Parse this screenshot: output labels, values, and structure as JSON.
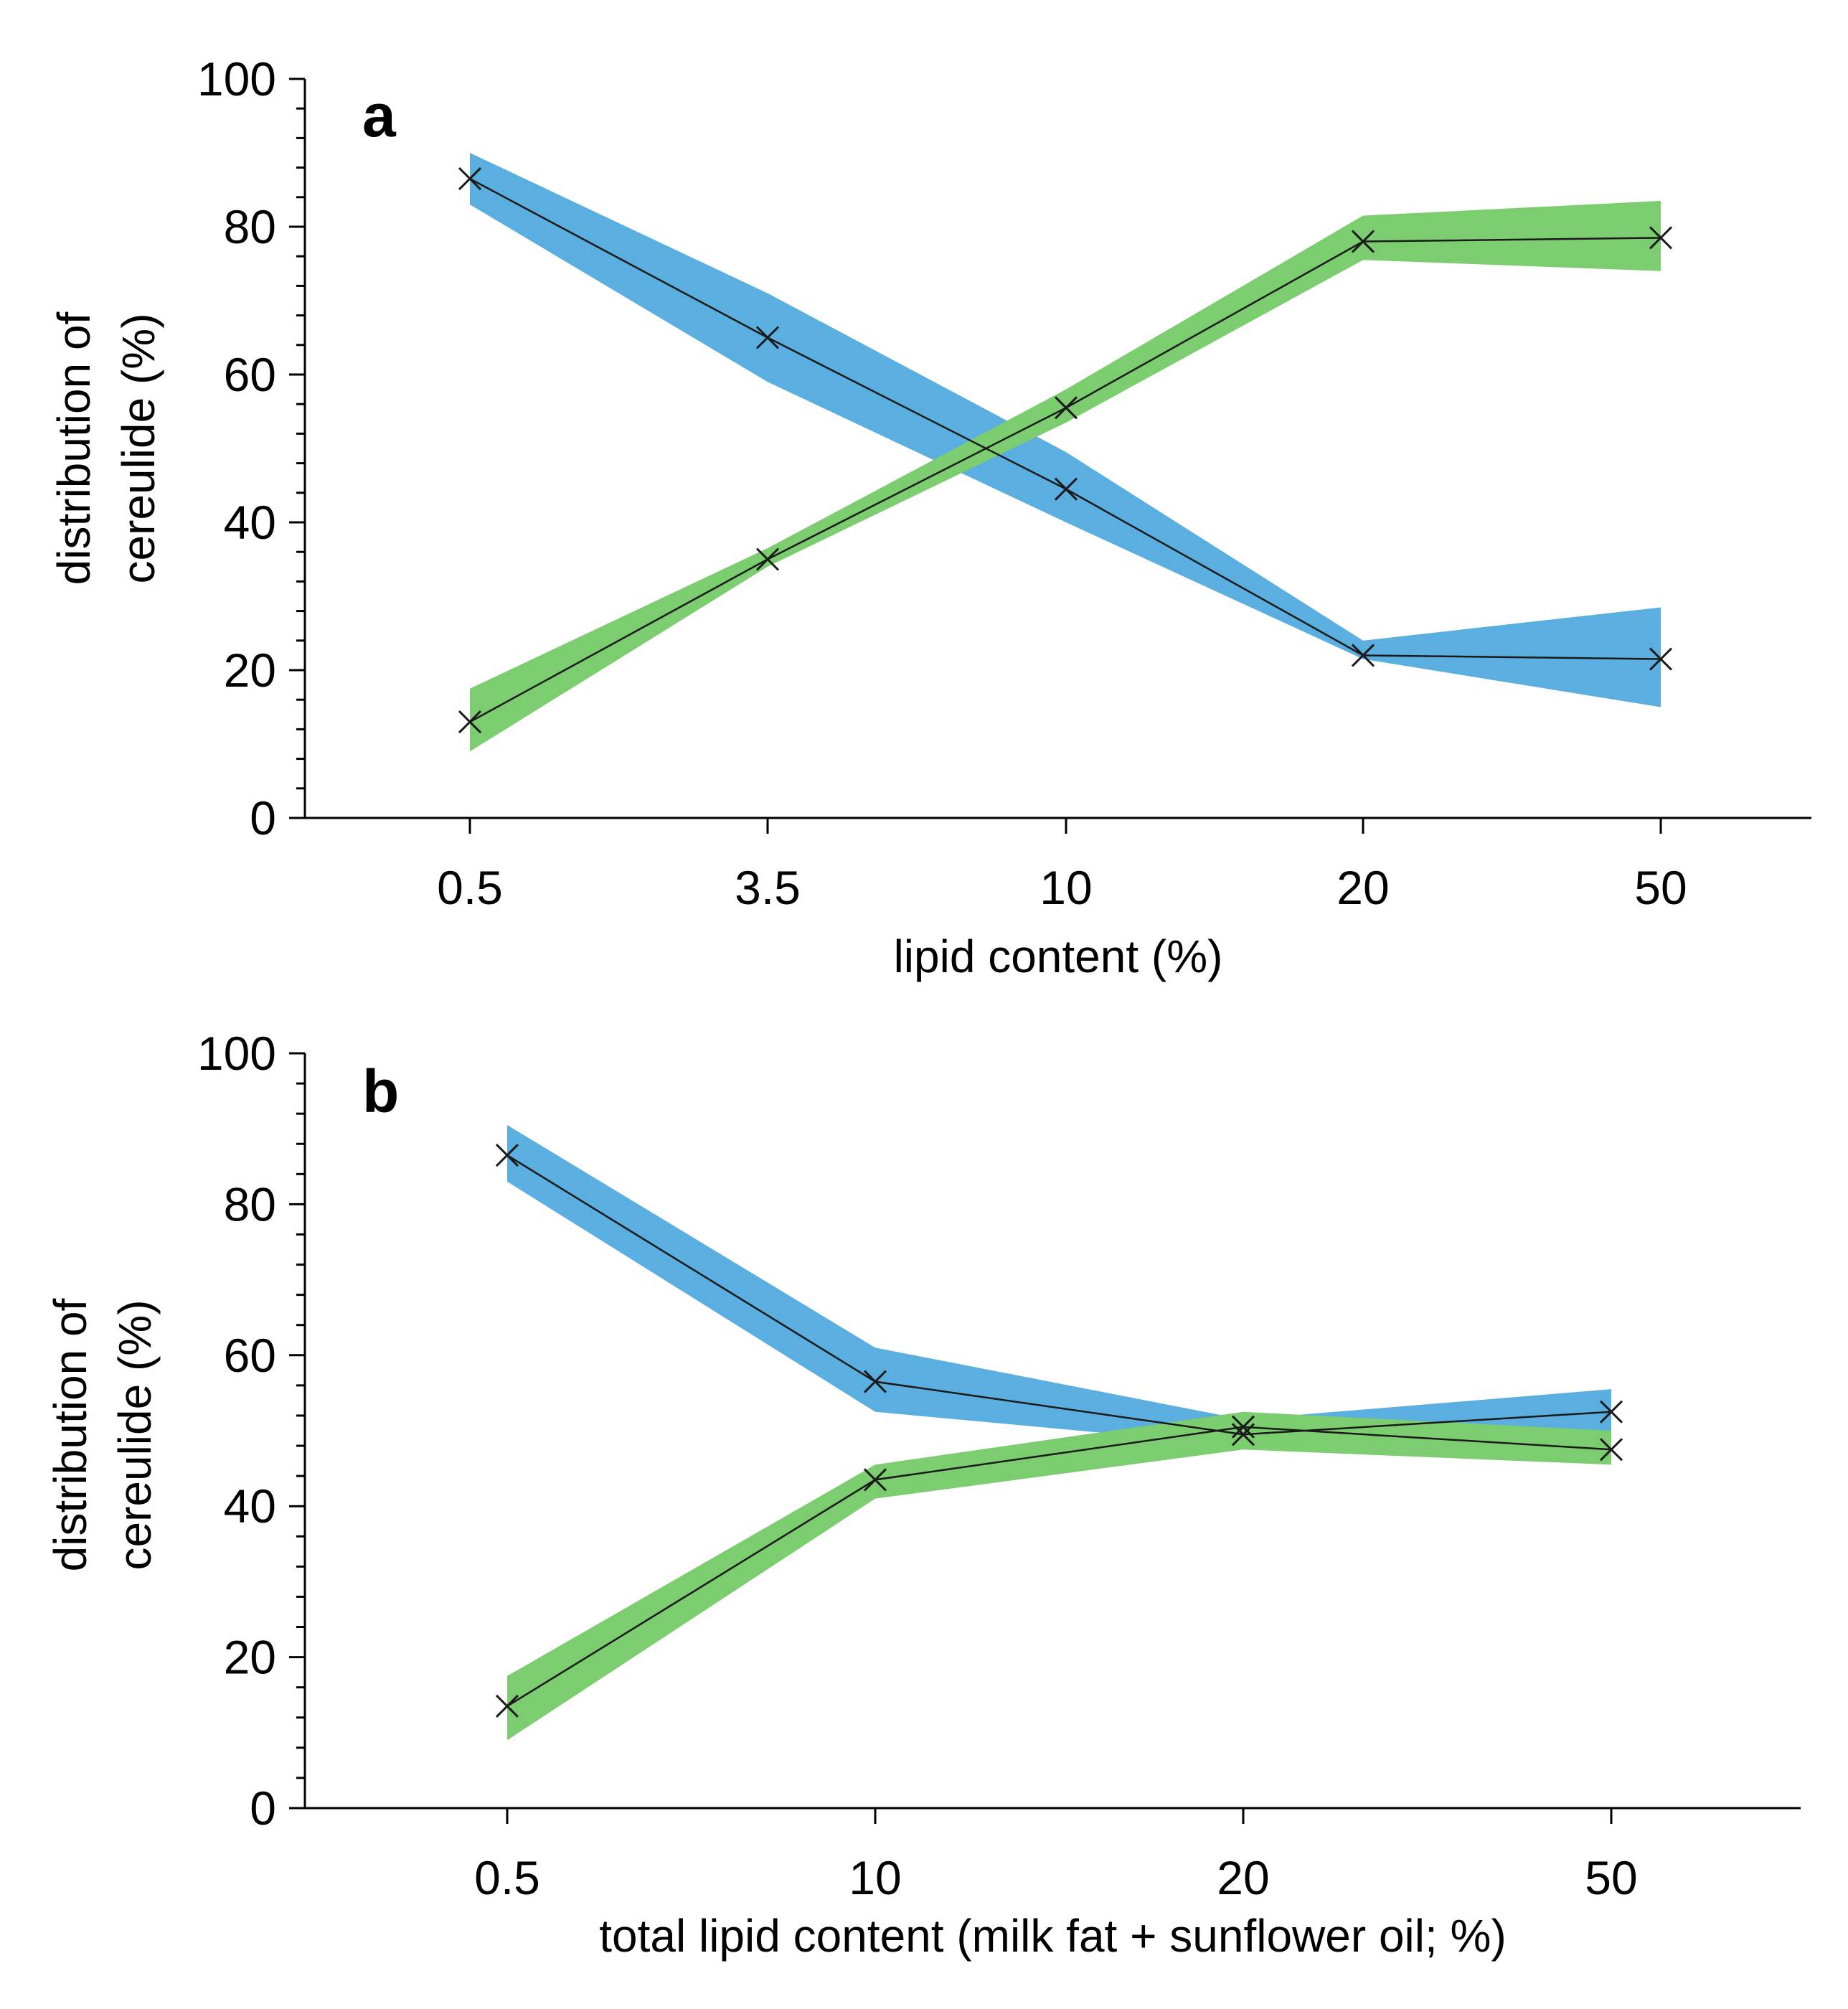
{
  "chart_data": [
    {
      "type": "line",
      "panel_label": "a",
      "categories": [
        "0.5",
        "3.5",
        "10",
        "20",
        "50"
      ],
      "xlabel": "lipid content (%)",
      "ylabel": [
        "distribution of",
        "cereulide (%)"
      ],
      "ylim": [
        0,
        100
      ],
      "yticks": [
        0,
        20,
        40,
        60,
        80,
        100
      ],
      "grid": false,
      "series": [
        {
          "values": [
            86.5,
            65.0,
            44.5,
            22.0,
            21.5
          ],
          "lower": [
            83.0,
            59.0,
            40.0,
            21.5,
            15.0
          ],
          "upper": [
            90.0,
            71.0,
            49.5,
            24.0,
            28.5
          ],
          "color": "#5aaee0"
        },
        {
          "values": [
            13.0,
            35.0,
            55.5,
            78.0,
            78.5
          ],
          "lower": [
            9.0,
            34.0,
            53.5,
            75.5,
            74.0
          ],
          "upper": [
            17.5,
            36.5,
            58.0,
            81.5,
            83.5
          ],
          "color": "#7ccd6f"
        }
      ]
    },
    {
      "type": "line",
      "panel_label": "b",
      "categories": [
        "0.5",
        "10",
        "20",
        "50"
      ],
      "xlabel": "total lipid content (milk fat + sunflower oil; %)",
      "ylabel": [
        "distribution of",
        "cereulide (%)"
      ],
      "ylim": [
        0,
        100
      ],
      "yticks": [
        0,
        20,
        40,
        60,
        80,
        100
      ],
      "grid": false,
      "series": [
        {
          "values": [
            86.5,
            56.5,
            49.5,
            52.5
          ],
          "lower": [
            83.0,
            52.5,
            48.0,
            49.5
          ],
          "upper": [
            90.5,
            61.0,
            51.5,
            55.5
          ],
          "color": "#5aaee0"
        },
        {
          "values": [
            13.5,
            43.5,
            50.5,
            47.5
          ],
          "lower": [
            9.0,
            41.0,
            47.5,
            45.5
          ],
          "upper": [
            17.5,
            45.5,
            52.5,
            50.0
          ],
          "color": "#7ccd6f"
        }
      ]
    }
  ]
}
